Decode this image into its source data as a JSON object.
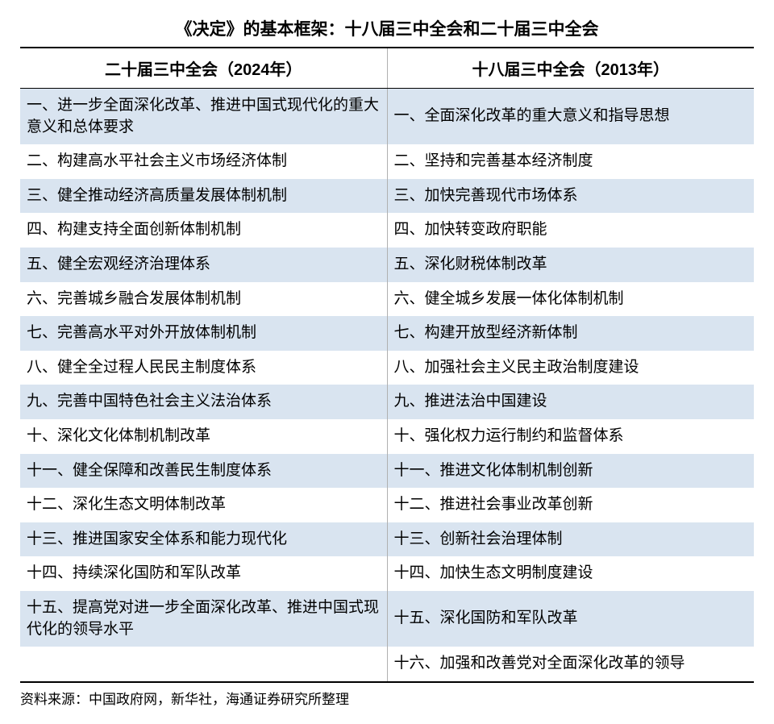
{
  "title": "《决定》的基本框架：十八届三中全会和二十届三中全会",
  "columns": [
    "二十届三中全会（2024年）",
    "十八届三中全会（2013年）"
  ],
  "rows": [
    [
      "一、进一步全面深化改革、推进中国式现代化的重大意义和总体要求",
      "一、全面深化改革的重大意义和指导思想"
    ],
    [
      "二、构建高水平社会主义市场经济体制",
      "二、坚持和完善基本经济制度"
    ],
    [
      "三、健全推动经济高质量发展体制机制",
      "三、加快完善现代市场体系"
    ],
    [
      "四、构建支持全面创新体制机制",
      "四、加快转变政府职能"
    ],
    [
      "五、健全宏观经济治理体系",
      "五、深化财税体制改革"
    ],
    [
      "六、完善城乡融合发展体制机制",
      "六、健全城乡发展一体化体制机制"
    ],
    [
      "七、完善高水平对外开放体制机制",
      "七、构建开放型经济新体制"
    ],
    [
      "八、健全全过程人民民主制度体系",
      "八、加强社会主义民主政治制度建设"
    ],
    [
      "九、完善中国特色社会主义法治体系",
      "九、推进法治中国建设"
    ],
    [
      "十、深化文化体制机制改革",
      "十、强化权力运行制约和监督体系"
    ],
    [
      "十一、健全保障和改善民生制度体系",
      "十一、推进文化体制机制创新"
    ],
    [
      "十二、深化生态文明体制改革",
      "十二、推进社会事业改革创新"
    ],
    [
      "十三、推进国家安全体系和能力现代化",
      "十三、创新社会治理体制"
    ],
    [
      "十四、持续深化国防和军队改革",
      "十四、加快生态文明制度建设"
    ],
    [
      "十五、提高党对进一步全面深化改革、推进中国式现代化的领导水平",
      "十五、深化国防和军队改革"
    ],
    [
      "",
      "十六、加强和改善党对全面深化改革的领导"
    ]
  ],
  "styling": {
    "row_odd_bg": "#d9e4f0",
    "row_even_bg": "#ffffff",
    "border_color": "#000000",
    "cell_divider_color": "#b0b0b0",
    "title_fontsize": 21,
    "header_fontsize": 20,
    "cell_fontsize": 19,
    "source_fontsize": 17
  },
  "source": "资料来源：中国政府网，新华社，海通证券研究所整理"
}
